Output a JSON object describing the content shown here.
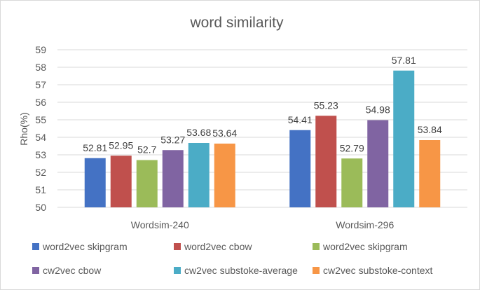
{
  "chart_data": {
    "type": "bar",
    "title": "word similarity",
    "ylabel": "Rho(%)",
    "xlabel": "",
    "ylim": [
      50,
      59
    ],
    "yticks": [
      50,
      51,
      52,
      53,
      54,
      55,
      56,
      57,
      58,
      59
    ],
    "grid": true,
    "legend_position": "bottom",
    "categories": [
      "Wordsim-240",
      "Wordsim-296"
    ],
    "series": [
      {
        "name": "word2vec skipgram",
        "color": "#4472c4",
        "values": [
          52.81,
          54.41
        ],
        "labels": [
          "52.81",
          "54.41"
        ]
      },
      {
        "name": "word2vec cbow",
        "color": "#c0504d",
        "values": [
          52.95,
          55.23
        ],
        "labels": [
          "52.95",
          "55.23"
        ]
      },
      {
        "name": "word2vec skipgram",
        "color": "#9bbb59",
        "values": [
          52.7,
          52.79
        ],
        "labels": [
          "52.7",
          "52.79"
        ]
      },
      {
        "name": "cw2vec cbow",
        "color": "#8064a2",
        "values": [
          53.27,
          54.98
        ],
        "labels": [
          "53.27",
          "54.98"
        ]
      },
      {
        "name": "cw2vec substoke-average",
        "color": "#4bacc6",
        "values": [
          53.68,
          57.81
        ],
        "labels": [
          "53.68",
          "57.81"
        ]
      },
      {
        "name": "cw2vec substoke-context",
        "color": "#f79646",
        "values": [
          53.64,
          53.84
        ],
        "labels": [
          "53.64",
          "53.84"
        ]
      }
    ]
  }
}
